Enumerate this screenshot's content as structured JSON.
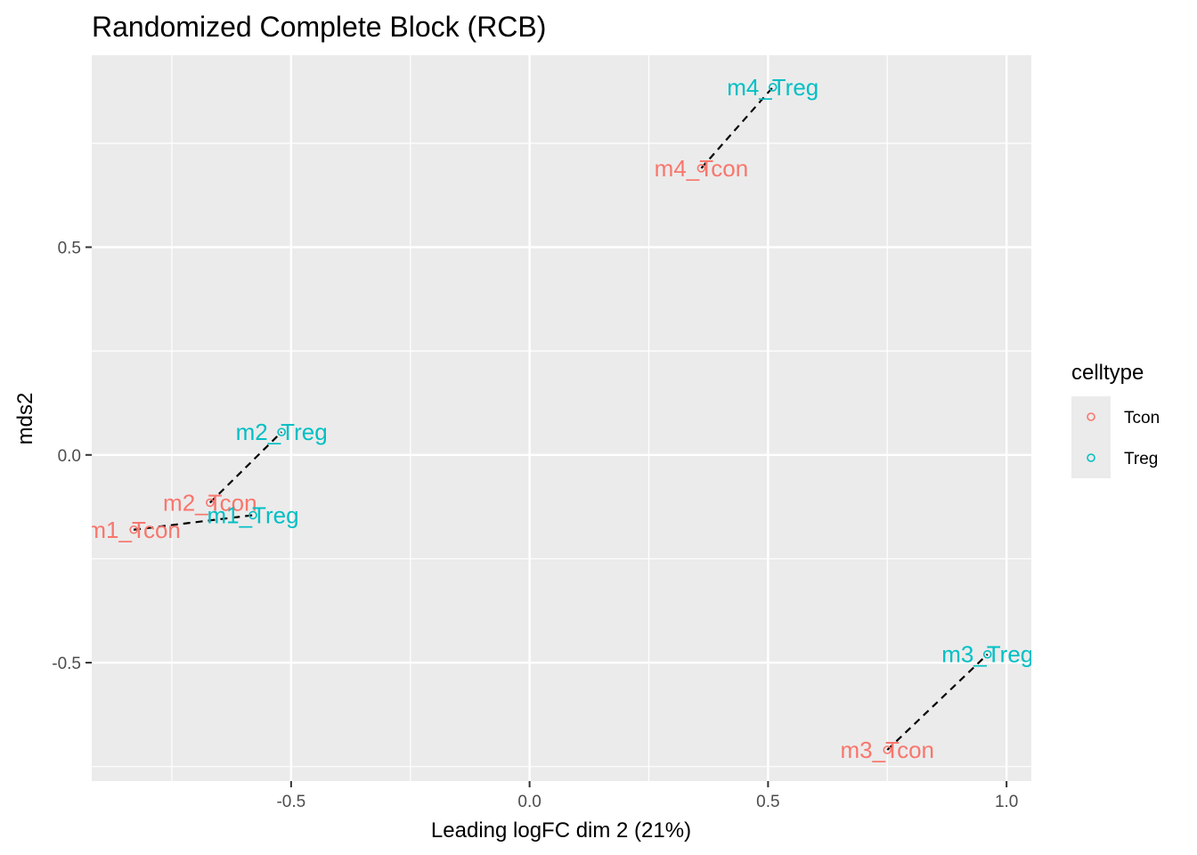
{
  "chart_data": {
    "type": "scatter",
    "title": "Randomized Complete Block (RCB)",
    "xlabel": "Leading logFC dim 2 (21%)",
    "ylabel": "mds2",
    "xlim": [
      -0.918,
      1.052
    ],
    "ylim": [
      -0.785,
      0.962
    ],
    "x_ticks": [
      -0.5,
      0.0,
      0.5,
      1.0
    ],
    "x_tick_labels": [
      "-0.5",
      "0.0",
      "0.5",
      "1.0"
    ],
    "y_ticks": [
      -0.5,
      0.0,
      0.5
    ],
    "y_tick_labels": [
      "-0.5",
      "0.0",
      "0.5"
    ],
    "grid": true,
    "legend": {
      "title": "celltype",
      "position": "right",
      "entries": [
        {
          "label": "Tcon",
          "color": "#F8766D"
        },
        {
          "label": "Treg",
          "color": "#00BFC4"
        }
      ]
    },
    "series": [
      {
        "name": "Tcon",
        "color": "#F8766D",
        "points": [
          {
            "label": "m1_Tcon",
            "x": -0.83,
            "y": -0.18
          },
          {
            "label": "m2_Tcon",
            "x": -0.67,
            "y": -0.115
          },
          {
            "label": "m3_Tcon",
            "x": 0.75,
            "y": -0.71
          },
          {
            "label": "m4_Tcon",
            "x": 0.36,
            "y": 0.69
          }
        ]
      },
      {
        "name": "Treg",
        "color": "#00BFC4",
        "points": [
          {
            "label": "m1_Treg",
            "x": -0.58,
            "y": -0.145
          },
          {
            "label": "m2_Treg",
            "x": -0.52,
            "y": 0.055
          },
          {
            "label": "m3_Treg",
            "x": 0.96,
            "y": -0.48
          },
          {
            "label": "m4_Treg",
            "x": 0.51,
            "y": 0.885
          }
        ]
      }
    ],
    "pairs": [
      {
        "from": "m1_Tcon",
        "to": "m1_Treg"
      },
      {
        "from": "m2_Tcon",
        "to": "m2_Treg"
      },
      {
        "from": "m3_Tcon",
        "to": "m3_Treg"
      },
      {
        "from": "m4_Tcon",
        "to": "m4_Treg"
      }
    ]
  }
}
